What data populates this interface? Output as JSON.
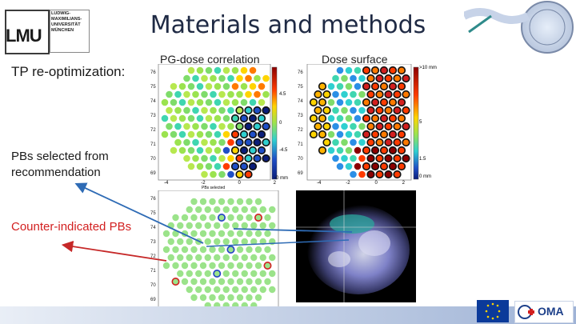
{
  "slide": {
    "title": "Materials and methods"
  },
  "logo": {
    "lmu_text": "LMU",
    "sub_lines": [
      "LUDWIG-",
      "MAXIMILIANS-",
      "UNIVERSITÄT",
      "MÜNCHEN"
    ]
  },
  "left_labels": {
    "tp_reopt": "TP re-optimization:",
    "pbs_selected": "PBs selected from recommendation",
    "counter_indicated": "Counter-indicated PBs"
  },
  "panels": {
    "pg_dose": "PG-dose correlation",
    "dose_surface": "Dose surface",
    "pbs_selected_axis": "PBs selected"
  },
  "colorbar_pg": {
    "top_label": "",
    "values": [
      "4.5",
      "0",
      "-4.5"
    ],
    "bottom_label": "-0 mm"
  },
  "colorbar_ds": {
    "top_label": ">10 mm",
    "values": [
      "5",
      "1.5"
    ],
    "bottom_label": "0 mm"
  },
  "y_ticks_top": [
    "76",
    "75",
    "74",
    "73",
    "72",
    "71",
    "70",
    "69"
  ],
  "y_ticks_bottom": [
    "76",
    "75",
    "74",
    "73",
    "72",
    "71",
    "70",
    "69"
  ],
  "x_ticks": [
    "-4",
    "-2",
    "0",
    "2"
  ],
  "colors": {
    "title": "#1f2a44",
    "red_arrow": "#c62828",
    "blue_arrow": "#2e6bb5",
    "accent_bar": "#9fb3d6"
  },
  "footer_icons": [
    "eu-flag-icon",
    "oma-logo-icon"
  ],
  "footer_oma_text": "OMA"
}
